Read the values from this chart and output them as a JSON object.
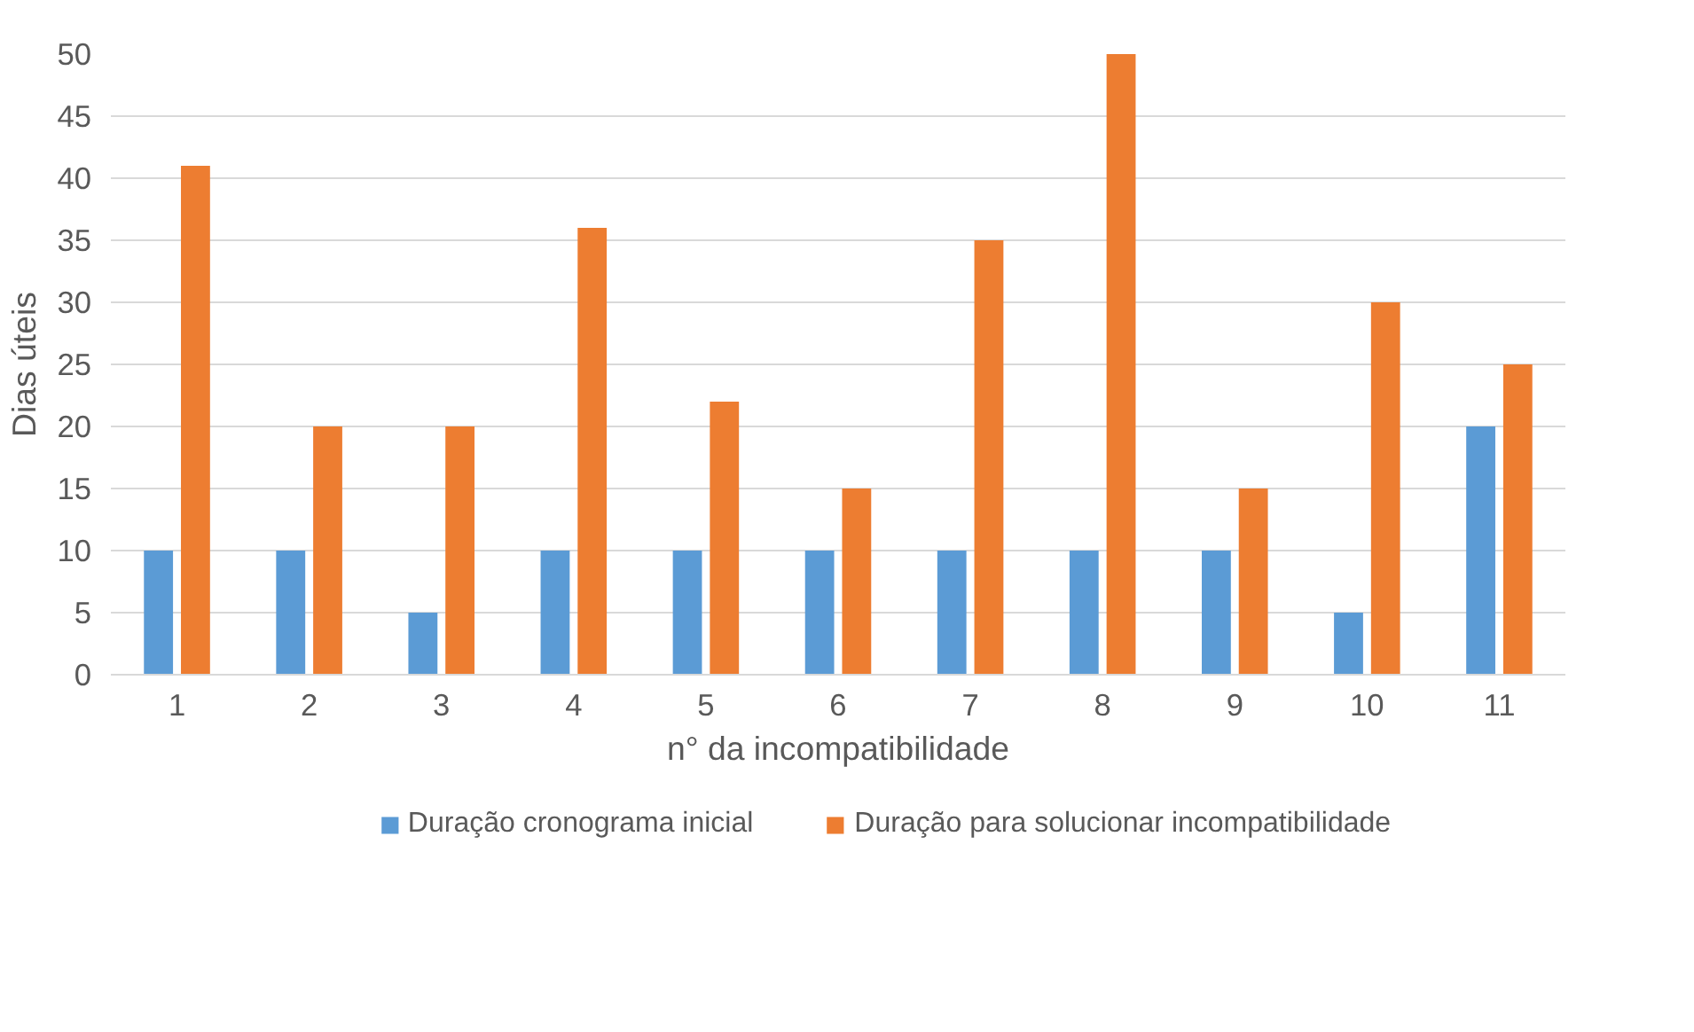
{
  "chart_data": {
    "type": "bar",
    "xlabel": "n° da incompatibilidade",
    "ylabel": "Dias úteis",
    "categories": [
      "1",
      "2",
      "3",
      "4",
      "5",
      "6",
      "7",
      "8",
      "9",
      "10",
      "11"
    ],
    "series": [
      {
        "name": "Duração cronograma inicial",
        "color": "#5b9bd5",
        "values": [
          10,
          10,
          5,
          10,
          10,
          10,
          10,
          10,
          10,
          5,
          20
        ]
      },
      {
        "name": "Duração para solucionar incompatibilidade",
        "color": "#ed7d31",
        "values": [
          41,
          20,
          20,
          36,
          22,
          15,
          35,
          50,
          15,
          30,
          25
        ]
      }
    ],
    "ylim": [
      0,
      50
    ],
    "yticks": [
      0,
      5,
      10,
      15,
      20,
      25,
      30,
      35,
      40,
      45,
      50
    ],
    "grid": "y",
    "legend": "bottom"
  }
}
